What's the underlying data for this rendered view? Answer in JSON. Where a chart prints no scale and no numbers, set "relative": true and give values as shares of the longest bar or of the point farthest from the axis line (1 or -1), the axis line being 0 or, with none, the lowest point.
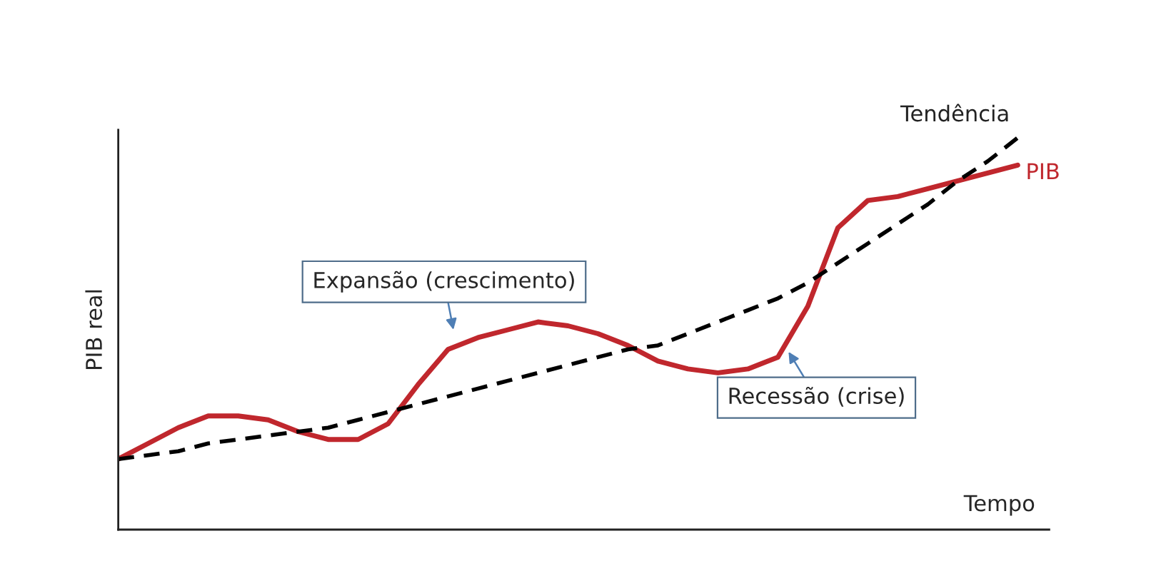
{
  "chart_data": {
    "type": "line",
    "relative": true,
    "xlabel": "Tempo",
    "ylabel": "PIB real",
    "legend": false,
    "categories": [
      null,
      null,
      null,
      null,
      null,
      null,
      null,
      null,
      null,
      null,
      null,
      null,
      null,
      null,
      null,
      null,
      null,
      null,
      null,
      null,
      null,
      null,
      null,
      null,
      null,
      null,
      null,
      null,
      null,
      null,
      null
    ],
    "series": [
      {
        "name": "PIB",
        "color": "#c0272d",
        "line_style": "solid",
        "values": [
          0.18,
          0.22,
          0.26,
          0.29,
          0.29,
          0.28,
          0.25,
          0.23,
          0.23,
          0.27,
          0.37,
          0.46,
          0.49,
          0.51,
          0.53,
          0.52,
          0.5,
          0.47,
          0.43,
          0.41,
          0.4,
          0.41,
          0.44,
          0.57,
          0.77,
          0.84,
          0.85,
          0.87,
          0.89,
          0.91,
          0.93
        ]
      },
      {
        "name": "Tendência",
        "color": "#000000",
        "line_style": "dashed",
        "values": [
          0.18,
          0.19,
          0.2,
          0.22,
          0.23,
          0.24,
          0.25,
          0.26,
          0.28,
          0.3,
          0.32,
          0.34,
          0.36,
          0.38,
          0.4,
          0.42,
          0.44,
          0.46,
          0.47,
          0.5,
          0.53,
          0.56,
          0.59,
          0.63,
          0.68,
          0.73,
          0.78,
          0.83,
          0.89,
          0.94,
          1.0
        ]
      }
    ],
    "annotations": [
      "Expansão (crescimento)",
      "Recessão (crise)"
    ]
  }
}
